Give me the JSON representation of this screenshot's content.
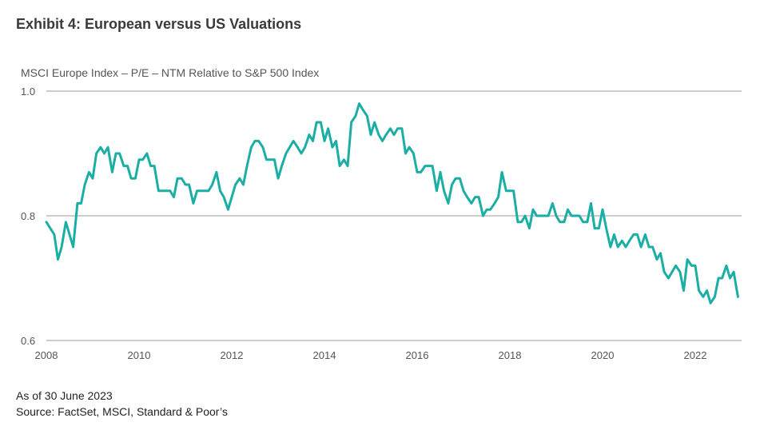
{
  "header": {
    "title": "Exhibit 4: European versus US Valuations",
    "subtitle": "MSCI Europe Index – P/E – NTM Relative to S&P 500 Index"
  },
  "footer": {
    "as_of": "As of 30 June 2023",
    "source": "Source: FactSet, MSCI, Standard & Poor’s"
  },
  "colors": {
    "line": "#1aaea4",
    "grid": "#9a9a9a"
  },
  "chart_data": {
    "type": "line",
    "title": "",
    "xlabel": "",
    "ylabel": "MSCI Europe Index – P/E – NTM Relative to S&P 500 Index",
    "xlim": [
      2008,
      2023
    ],
    "ylim": [
      0.6,
      1.0
    ],
    "grid": "horizontal",
    "y_ticks": [
      {
        "value": 1.0,
        "label": "1.0"
      },
      {
        "value": 0.8,
        "label": "0.8"
      },
      {
        "value": 0.6,
        "label": "0.6"
      }
    ],
    "x_ticks": [
      {
        "value": 2008,
        "label": "2008"
      },
      {
        "value": 2010,
        "label": "2010"
      },
      {
        "value": 2012,
        "label": "2012"
      },
      {
        "value": 2014,
        "label": "2014"
      },
      {
        "value": 2016,
        "label": "2016"
      },
      {
        "value": 2018,
        "label": "2018"
      },
      {
        "value": 2020,
        "label": "2020"
      },
      {
        "value": 2022,
        "label": "2022"
      }
    ],
    "series": [
      {
        "x": [
          2008.0,
          2008.17,
          2008.25,
          2008.33,
          2008.42,
          2008.5,
          2008.58,
          2008.67,
          2008.75,
          2008.83,
          2008.92,
          2009.0,
          2009.08,
          2009.17,
          2009.25,
          2009.33,
          2009.42,
          2009.5,
          2009.58,
          2009.67,
          2009.75,
          2009.83,
          2009.92,
          2010.0,
          2010.08,
          2010.17,
          2010.25,
          2010.33,
          2010.42,
          2010.5,
          2010.58,
          2010.67,
          2010.75,
          2010.83,
          2010.92,
          2011.0,
          2011.08,
          2011.17,
          2011.25,
          2011.33,
          2011.42,
          2011.5,
          2011.58,
          2011.67,
          2011.75,
          2011.83,
          2011.92,
          2012.0,
          2012.08,
          2012.17,
          2012.25,
          2012.33,
          2012.42,
          2012.5,
          2012.58,
          2012.67,
          2012.75,
          2012.83,
          2012.92,
          2013.0,
          2013.08,
          2013.17,
          2013.25,
          2013.33,
          2013.42,
          2013.5,
          2013.58,
          2013.67,
          2013.75,
          2013.83,
          2013.92,
          2014.0,
          2014.08,
          2014.17,
          2014.25,
          2014.33,
          2014.42,
          2014.5,
          2014.58,
          2014.67,
          2014.75,
          2014.83,
          2014.92,
          2015.0,
          2015.08,
          2015.17,
          2015.25,
          2015.33,
          2015.42,
          2015.5,
          2015.58,
          2015.67,
          2015.75,
          2015.83,
          2015.92,
          2016.0,
          2016.08,
          2016.17,
          2016.25,
          2016.33,
          2016.42,
          2016.5,
          2016.58,
          2016.67,
          2016.75,
          2016.83,
          2016.92,
          2017.0,
          2017.08,
          2017.17,
          2017.25,
          2017.33,
          2017.42,
          2017.5,
          2017.58,
          2017.67,
          2017.75,
          2017.83,
          2017.92,
          2018.0,
          2018.08,
          2018.17,
          2018.25,
          2018.33,
          2018.42,
          2018.5,
          2018.58,
          2018.67,
          2018.75,
          2018.83,
          2018.92,
          2019.0,
          2019.08,
          2019.17,
          2019.25,
          2019.33,
          2019.42,
          2019.5,
          2019.58,
          2019.67,
          2019.75,
          2019.83,
          2019.92,
          2020.0,
          2020.08,
          2020.17,
          2020.25,
          2020.33,
          2020.42,
          2020.5,
          2020.58,
          2020.67,
          2020.75,
          2020.83,
          2020.92,
          2021.0,
          2021.08,
          2021.17,
          2021.25,
          2021.33,
          2021.42,
          2021.5,
          2021.58,
          2021.67,
          2021.75,
          2021.83,
          2021.92,
          2022.0,
          2022.08,
          2022.17,
          2022.25,
          2022.33,
          2022.42,
          2022.5,
          2022.58,
          2022.67,
          2022.75,
          2022.83,
          2022.92
        ],
        "values": [
          0.79,
          0.77,
          0.73,
          0.75,
          0.79,
          0.77,
          0.75,
          0.82,
          0.82,
          0.85,
          0.87,
          0.86,
          0.9,
          0.91,
          0.9,
          0.91,
          0.87,
          0.9,
          0.9,
          0.88,
          0.88,
          0.86,
          0.86,
          0.89,
          0.89,
          0.9,
          0.88,
          0.88,
          0.84,
          0.84,
          0.84,
          0.84,
          0.83,
          0.86,
          0.86,
          0.85,
          0.85,
          0.82,
          0.84,
          0.84,
          0.84,
          0.84,
          0.85,
          0.87,
          0.84,
          0.83,
          0.81,
          0.83,
          0.85,
          0.86,
          0.85,
          0.88,
          0.91,
          0.92,
          0.92,
          0.91,
          0.89,
          0.89,
          0.89,
          0.86,
          0.88,
          0.9,
          0.91,
          0.92,
          0.91,
          0.9,
          0.91,
          0.93,
          0.92,
          0.95,
          0.95,
          0.92,
          0.94,
          0.91,
          0.92,
          0.88,
          0.89,
          0.88,
          0.95,
          0.96,
          0.98,
          0.97,
          0.96,
          0.93,
          0.95,
          0.93,
          0.92,
          0.93,
          0.94,
          0.93,
          0.94,
          0.94,
          0.9,
          0.91,
          0.9,
          0.87,
          0.87,
          0.88,
          0.88,
          0.88,
          0.84,
          0.87,
          0.84,
          0.82,
          0.85,
          0.86,
          0.86,
          0.84,
          0.83,
          0.82,
          0.83,
          0.83,
          0.8,
          0.81,
          0.81,
          0.82,
          0.83,
          0.87,
          0.84,
          0.84,
          0.84,
          0.79,
          0.79,
          0.8,
          0.78,
          0.81,
          0.8,
          0.8,
          0.8,
          0.8,
          0.82,
          0.8,
          0.79,
          0.79,
          0.81,
          0.8,
          0.8,
          0.8,
          0.79,
          0.79,
          0.82,
          0.78,
          0.78,
          0.81,
          0.78,
          0.75,
          0.77,
          0.75,
          0.76,
          0.75,
          0.76,
          0.77,
          0.77,
          0.75,
          0.77,
          0.75,
          0.75,
          0.73,
          0.74,
          0.71,
          0.7,
          0.71,
          0.72,
          0.71,
          0.68,
          0.73,
          0.72,
          0.72,
          0.68,
          0.67,
          0.68,
          0.66,
          0.67,
          0.7,
          0.7,
          0.72,
          0.7,
          0.71,
          0.67
        ]
      }
    ]
  }
}
